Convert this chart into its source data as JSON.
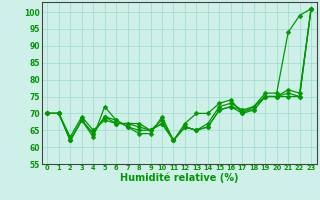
{
  "xlabel": "Humidité relative (%)",
  "xlim": [
    -0.5,
    23.5
  ],
  "ylim": [
    55,
    103
  ],
  "yticks": [
    55,
    60,
    65,
    70,
    75,
    80,
    85,
    90,
    95,
    100
  ],
  "xticks": [
    0,
    1,
    2,
    3,
    4,
    5,
    6,
    7,
    8,
    9,
    10,
    11,
    12,
    13,
    14,
    15,
    16,
    17,
    18,
    19,
    20,
    21,
    22,
    23
  ],
  "background_color": "#cef0e8",
  "grid_color": "#99ddcc",
  "line_color": "#009900",
  "marker": "D",
  "marker_size": 2.5,
  "linewidth": 0.9,
  "series": [
    [
      70,
      70,
      62,
      68,
      63,
      72,
      68,
      66,
      64,
      64,
      69,
      62,
      67,
      70,
      70,
      73,
      74,
      70,
      72,
      76,
      76,
      94,
      99,
      101
    ],
    [
      70,
      70,
      62,
      68,
      64,
      69,
      68,
      66,
      65,
      65,
      68,
      62,
      66,
      65,
      67,
      72,
      73,
      71,
      72,
      75,
      75,
      77,
      76,
      101
    ],
    [
      70,
      70,
      62,
      68,
      64,
      69,
      67,
      67,
      66,
      65,
      67,
      62,
      66,
      65,
      66,
      71,
      72,
      71,
      71,
      75,
      75,
      76,
      75,
      101
    ],
    [
      70,
      70,
      63,
      69,
      65,
      68,
      67,
      67,
      67,
      65,
      67,
      62,
      66,
      65,
      66,
      71,
      72,
      70,
      71,
      75,
      75,
      75,
      75,
      101
    ]
  ]
}
